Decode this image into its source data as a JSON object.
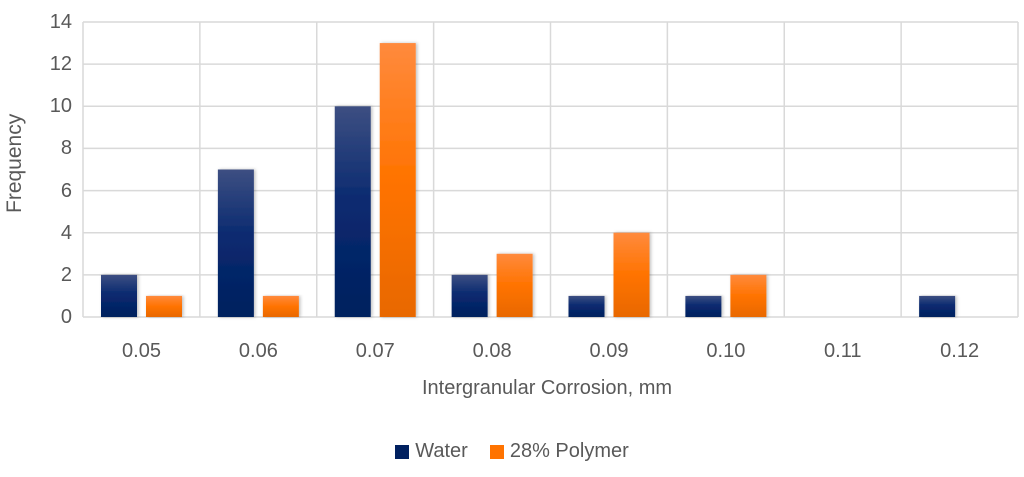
{
  "chart_data": {
    "type": "bar",
    "title": "",
    "xlabel": "Intergranular Corrosion, mm",
    "ylabel": "Frequency",
    "categories": [
      "0.05",
      "0.06",
      "0.07",
      "0.08",
      "0.09",
      "0.10",
      "0.11",
      "0.12"
    ],
    "series": [
      {
        "name": "Water",
        "values": [
          2,
          7,
          10,
          2,
          1,
          1,
          0,
          1
        ],
        "color": "#002060"
      },
      {
        "name": "28% Polymer",
        "values": [
          1,
          1,
          13,
          3,
          4,
          2,
          0,
          0
        ],
        "color": "#FF7300"
      }
    ],
    "ylim": [
      0,
      14
    ],
    "yticks": [
      "0",
      "2",
      "4",
      "6",
      "8",
      "10",
      "12",
      "14"
    ],
    "grid": true,
    "legend_position": "bottom"
  },
  "axes": {
    "xlabel": "Intergranular Corrosion, mm",
    "ylabel": "Frequency"
  },
  "legend": {
    "items": [
      {
        "label": "Water",
        "color": "#002060"
      },
      {
        "label": "28% Polymer",
        "color": "#FF7300"
      }
    ]
  }
}
